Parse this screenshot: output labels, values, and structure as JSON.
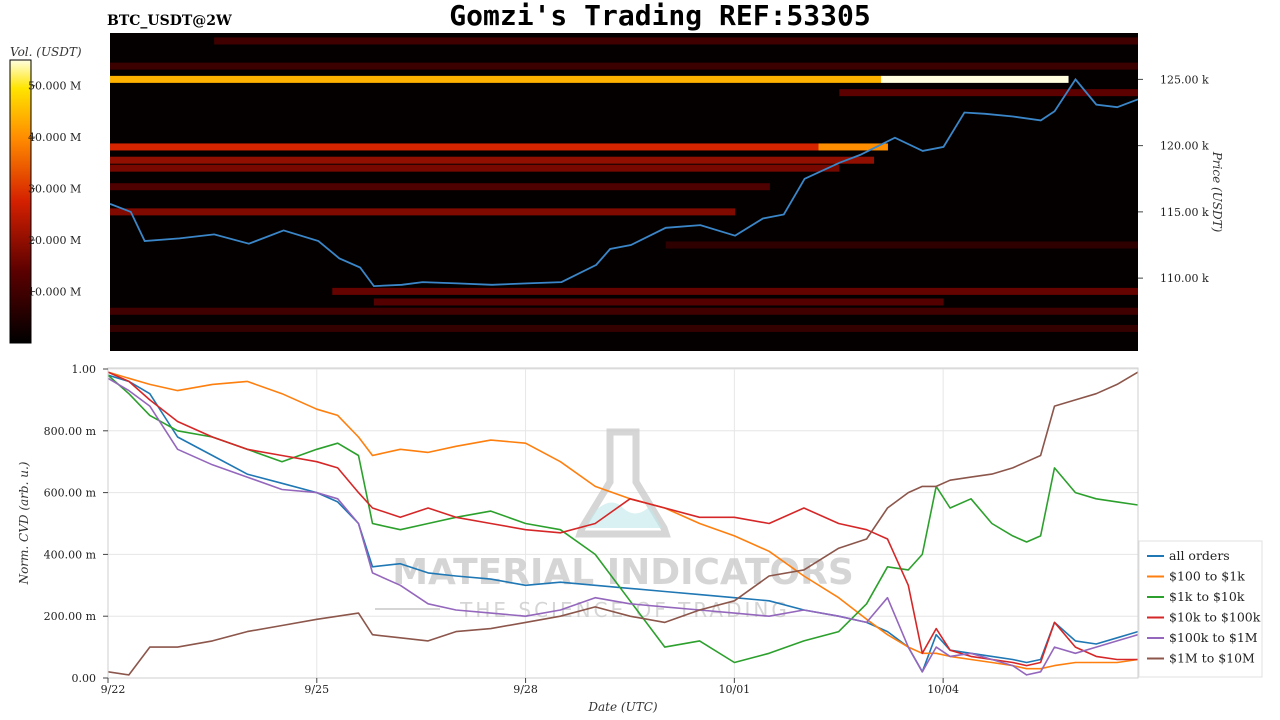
{
  "title": "Gomzi's Trading REF:53305",
  "symbol": "BTC_USDT@2W",
  "watermark": {
    "main": "MATERIAL INDICATORS",
    "sub": "THE SCIENCE OF TRADING"
  },
  "colors": {
    "all orders": "#1f77b4",
    "$100 to $1k": "#ff7f0e",
    "$1k to $10k": "#2ca02c",
    "$10k to $100k": "#d62728",
    "$100k to $1M": "#9467bd",
    "$1M to $10M": "#8c564b",
    "price_line": "#3a86c8"
  },
  "chart_data": [
    {
      "type": "heatmap",
      "name": "orderbook-heatmap",
      "colorbar": {
        "label": "Vol. (USDT)",
        "ticks": [
          "10.000 M",
          "20.000 M",
          "30.000 M",
          "40.000 M",
          "50.000 M"
        ],
        "tick_values": [
          10,
          20,
          30,
          40,
          50
        ],
        "range": [
          0,
          55
        ]
      },
      "y_axis": {
        "label": "Price (USDT)",
        "ticks": [
          "110.00 k",
          "115.00 k",
          "120.00 k",
          "125.00 k"
        ],
        "tick_values": [
          110,
          115,
          120,
          125
        ],
        "range": [
          104.5,
          128.5
        ]
      },
      "x_range": [
        0,
        14.8
      ],
      "liquidity_bands": [
        {
          "price": 125.0,
          "start": 0,
          "end": 11.1,
          "level": 44
        },
        {
          "price": 125.0,
          "start": 11.1,
          "end": 13.8,
          "level": 55
        },
        {
          "price": 119.9,
          "start": 0,
          "end": 10.2,
          "level": 28
        },
        {
          "price": 119.9,
          "start": 10.2,
          "end": 11.2,
          "level": 40
        },
        {
          "price": 118.9,
          "start": 0,
          "end": 11.0,
          "level": 20
        },
        {
          "price": 118.3,
          "start": 0,
          "end": 10.5,
          "level": 17
        },
        {
          "price": 116.9,
          "start": 0,
          "end": 9.5,
          "level": 12
        },
        {
          "price": 115.0,
          "start": 0,
          "end": 9.0,
          "level": 18
        },
        {
          "price": 109.0,
          "start": 3.2,
          "end": 14.8,
          "level": 15
        },
        {
          "price": 108.2,
          "start": 3.8,
          "end": 12.0,
          "level": 13
        },
        {
          "price": 107.5,
          "start": 0,
          "end": 14.8,
          "level": 10
        },
        {
          "price": 106.2,
          "start": 0,
          "end": 14.8,
          "level": 8
        },
        {
          "price": 127.9,
          "start": 1.5,
          "end": 14.8,
          "level": 10
        },
        {
          "price": 126.0,
          "start": 0,
          "end": 14.8,
          "level": 9
        },
        {
          "price": 124.0,
          "start": 10.5,
          "end": 14.8,
          "level": 14
        },
        {
          "price": 112.5,
          "start": 8.0,
          "end": 14.8,
          "level": 7
        }
      ],
      "price": {
        "t": [
          0,
          0.3,
          0.5,
          1.0,
          1.5,
          2.0,
          2.5,
          3.0,
          3.3,
          3.6,
          3.8,
          4.2,
          4.5,
          5.0,
          5.5,
          6.0,
          6.5,
          7.0,
          7.2,
          7.5,
          8.0,
          8.5,
          9.0,
          9.4,
          9.7,
          10.0,
          10.5,
          10.8,
          11.3,
          11.7,
          12.0,
          12.3,
          12.6,
          13.0,
          13.4,
          13.6,
          13.9,
          14.2,
          14.5,
          14.8
        ],
        "v": [
          115.6,
          115.0,
          112.8,
          113.0,
          113.3,
          112.6,
          113.6,
          112.8,
          111.5,
          110.8,
          109.4,
          109.5,
          109.7,
          109.6,
          109.5,
          109.6,
          109.7,
          111.0,
          112.2,
          112.5,
          113.8,
          114.0,
          113.2,
          114.5,
          114.8,
          117.5,
          118.7,
          119.3,
          120.6,
          119.6,
          119.9,
          122.5,
          122.4,
          122.2,
          121.9,
          122.6,
          125.0,
          123.1,
          122.9,
          123.5
        ]
      }
    },
    {
      "type": "line",
      "name": "cvd-chart",
      "x_range": [
        0,
        14.8
      ],
      "xlabel": "Date (UTC)",
      "x_ticks": [
        "9/22",
        "9/25",
        "9/28",
        "10/01",
        "10/04"
      ],
      "x_tick_values": [
        0,
        3,
        6,
        9,
        12
      ],
      "ylabel": "Norm. CVD (arb. u.)",
      "y_ticks": [
        "0.00",
        "200.00 m",
        "400.00 m",
        "600.00 m",
        "800.00 m",
        "1.00"
      ],
      "y_tick_values": [
        0,
        0.2,
        0.4,
        0.6,
        0.8,
        1.0
      ],
      "ylim": [
        0,
        1.0
      ],
      "x": [
        0,
        0.3,
        0.6,
        1.0,
        1.5,
        2.0,
        2.5,
        3.0,
        3.3,
        3.6,
        3.8,
        4.2,
        4.6,
        5.0,
        5.5,
        6.0,
        6.5,
        7.0,
        7.5,
        8.0,
        8.5,
        9.0,
        9.5,
        10.0,
        10.5,
        10.9,
        11.2,
        11.5,
        11.7,
        11.9,
        12.1,
        12.4,
        12.7,
        13.0,
        13.2,
        13.4,
        13.6,
        13.9,
        14.2,
        14.5,
        14.8
      ],
      "series": [
        {
          "name": "all orders",
          "values": [
            0.98,
            0.96,
            0.92,
            0.78,
            0.72,
            0.66,
            0.63,
            0.6,
            0.57,
            0.5,
            0.36,
            0.37,
            0.34,
            0.33,
            0.32,
            0.3,
            0.31,
            0.3,
            0.29,
            0.28,
            0.27,
            0.26,
            0.25,
            0.22,
            0.2,
            0.18,
            0.15,
            0.1,
            0.02,
            0.14,
            0.09,
            0.08,
            0.07,
            0.06,
            0.05,
            0.06,
            0.18,
            0.12,
            0.11,
            0.13,
            0.15
          ]
        },
        {
          "name": "$100 to $1k",
          "values": [
            0.99,
            0.97,
            0.95,
            0.93,
            0.95,
            0.96,
            0.92,
            0.87,
            0.85,
            0.78,
            0.72,
            0.74,
            0.73,
            0.75,
            0.77,
            0.76,
            0.7,
            0.62,
            0.58,
            0.55,
            0.5,
            0.46,
            0.41,
            0.33,
            0.26,
            0.19,
            0.14,
            0.1,
            0.08,
            0.08,
            0.07,
            0.06,
            0.05,
            0.04,
            0.03,
            0.03,
            0.04,
            0.05,
            0.05,
            0.05,
            0.06
          ]
        },
        {
          "name": "$1k to $10k",
          "values": [
            0.98,
            0.92,
            0.85,
            0.8,
            0.78,
            0.74,
            0.7,
            0.74,
            0.76,
            0.72,
            0.5,
            0.48,
            0.5,
            0.52,
            0.54,
            0.5,
            0.48,
            0.4,
            0.25,
            0.1,
            0.12,
            0.05,
            0.08,
            0.12,
            0.15,
            0.24,
            0.36,
            0.35,
            0.4,
            0.62,
            0.55,
            0.58,
            0.5,
            0.46,
            0.44,
            0.46,
            0.68,
            0.6,
            0.58,
            0.57,
            0.56
          ]
        },
        {
          "name": "$10k to $100k",
          "values": [
            0.99,
            0.96,
            0.9,
            0.83,
            0.78,
            0.74,
            0.72,
            0.7,
            0.68,
            0.6,
            0.55,
            0.52,
            0.55,
            0.52,
            0.5,
            0.48,
            0.47,
            0.5,
            0.58,
            0.55,
            0.52,
            0.52,
            0.5,
            0.55,
            0.5,
            0.48,
            0.45,
            0.3,
            0.08,
            0.16,
            0.09,
            0.07,
            0.06,
            0.05,
            0.04,
            0.05,
            0.18,
            0.1,
            0.07,
            0.06,
            0.06
          ]
        },
        {
          "name": "$100k to $1M",
          "values": [
            0.97,
            0.93,
            0.88,
            0.74,
            0.69,
            0.65,
            0.61,
            0.6,
            0.58,
            0.5,
            0.34,
            0.3,
            0.24,
            0.22,
            0.21,
            0.2,
            0.22,
            0.26,
            0.24,
            0.23,
            0.22,
            0.21,
            0.2,
            0.22,
            0.2,
            0.18,
            0.26,
            0.1,
            0.02,
            0.1,
            0.07,
            0.08,
            0.06,
            0.04,
            0.01,
            0.02,
            0.1,
            0.08,
            0.1,
            0.12,
            0.14
          ]
        },
        {
          "name": "$1M to $10M",
          "values": [
            0.02,
            0.01,
            0.1,
            0.1,
            0.12,
            0.15,
            0.17,
            0.19,
            0.2,
            0.21,
            0.14,
            0.13,
            0.12,
            0.15,
            0.16,
            0.18,
            0.2,
            0.23,
            0.2,
            0.18,
            0.22,
            0.25,
            0.33,
            0.35,
            0.42,
            0.45,
            0.55,
            0.6,
            0.62,
            0.62,
            0.64,
            0.65,
            0.66,
            0.68,
            0.7,
            0.72,
            0.88,
            0.9,
            0.92,
            0.95,
            0.99
          ]
        }
      ],
      "legend_position": "bottom-right"
    }
  ]
}
